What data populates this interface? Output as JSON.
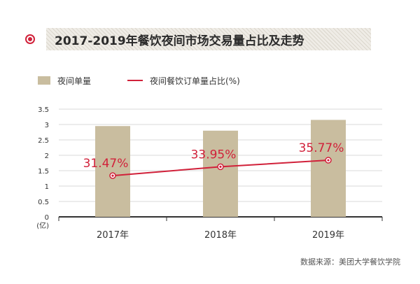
{
  "title": "2017-2019年餐饮夜间市场交易量占比及走势",
  "legend": {
    "bar_label": "夜间单量",
    "line_label": "夜间餐饮订单量占比(%)"
  },
  "source": "数据来源：美团大学餐饮学院",
  "colors": {
    "accent": "#d1213a",
    "bar": "#c9bd9f"
  },
  "chart_data": {
    "type": "bar",
    "categories": [
      "2017年",
      "2018年",
      "2019年"
    ],
    "series": [
      {
        "name": "夜间单量",
        "type": "bar",
        "values": [
          2.95,
          2.8,
          3.15
        ]
      },
      {
        "name": "夜间餐饮订单量占比(%)",
        "type": "line",
        "values": [
          31.47,
          33.95,
          35.77
        ],
        "labels": [
          "31.47%",
          "33.95%",
          "35.77%"
        ]
      }
    ],
    "y_ticks": [
      "0",
      "0.5",
      "1",
      "1.5",
      "2",
      "2.5",
      "3",
      "3.5"
    ],
    "y_unit": "(亿)",
    "ylim": [
      0,
      3.5
    ],
    "grid": true
  }
}
